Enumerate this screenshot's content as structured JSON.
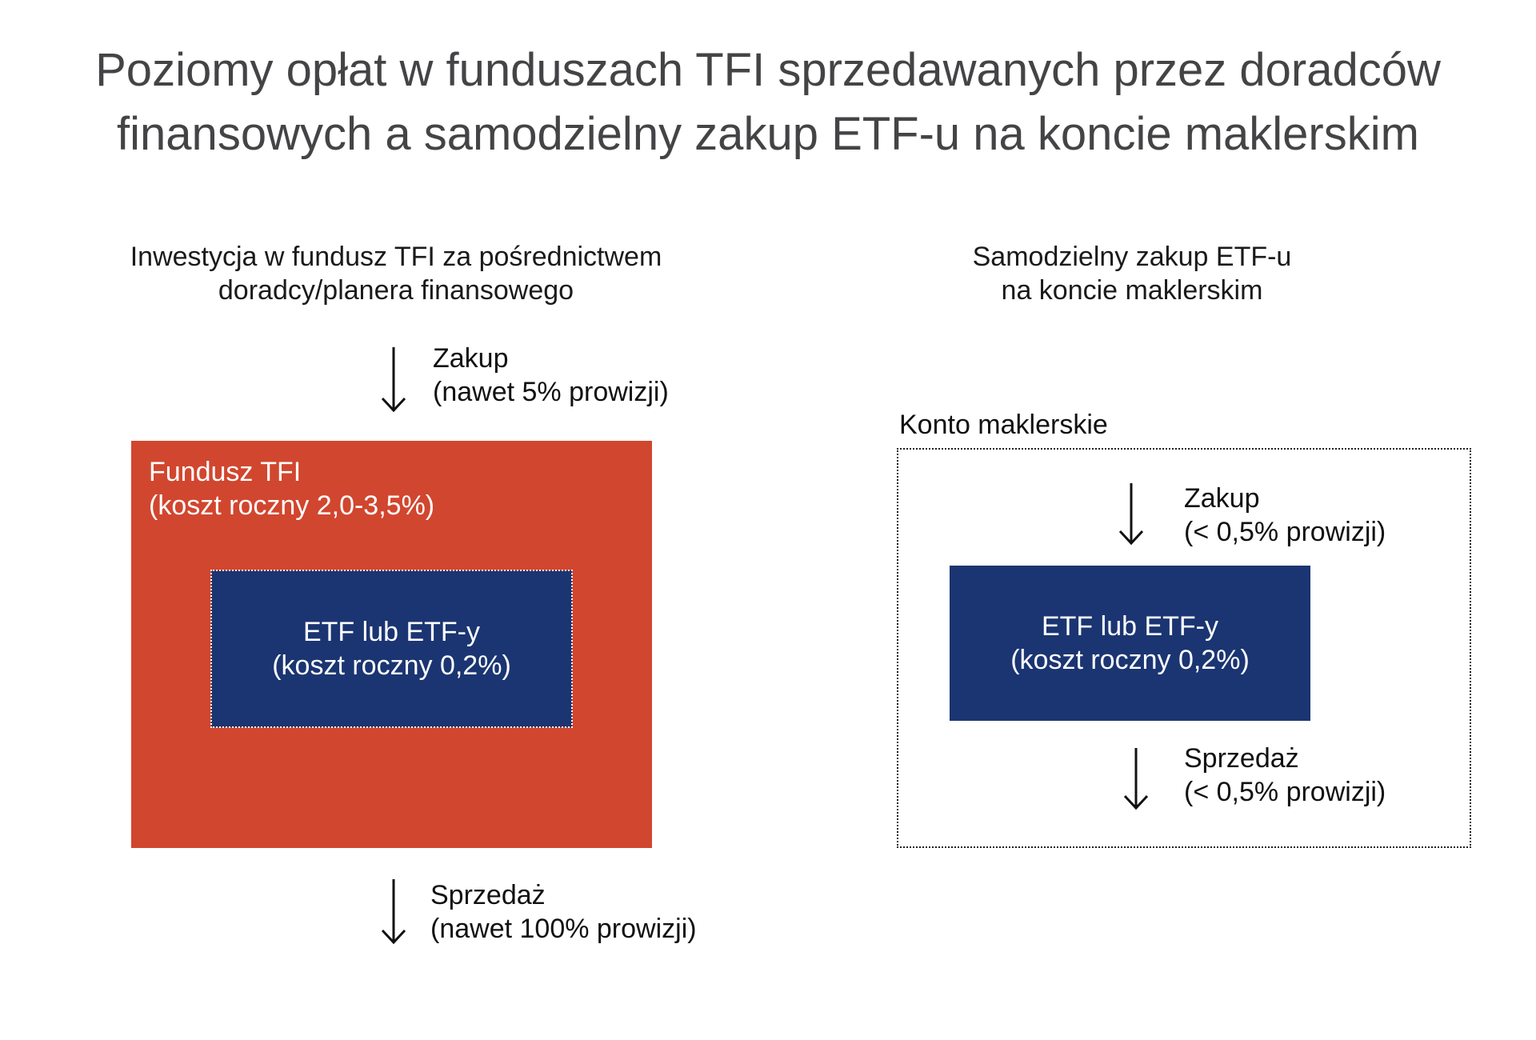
{
  "title": {
    "line1": "Poziomy opłat w funduszach TFI sprzedawanych przez doradców",
    "line2": "finansowych a samodzielny zakup ETF-u na koncie maklerskim"
  },
  "left": {
    "heading_line1": "Inwestycja w fundusz TFI za pośrednictwem",
    "heading_line2": "doradcy/planera finansowego",
    "buy": {
      "line1": "Zakup",
      "line2": "(nawet 5% prowizji)"
    },
    "fund_box": {
      "line1": "Fundusz TFI",
      "line2": "(koszt roczny 2,0-3,5%)"
    },
    "etf_box": {
      "line1": "ETF lub ETF-y",
      "line2": "(koszt roczny 0,2%)"
    },
    "sell": {
      "line1": "Sprzedaż",
      "line2": "(nawet 100% prowizji)"
    }
  },
  "right": {
    "heading_line1": "Samodzielny zakup ETF-u",
    "heading_line2": "na koncie maklerskim",
    "account_label": "Konto maklerskie",
    "buy": {
      "line1": "Zakup",
      "line2": "(< 0,5% prowizji)"
    },
    "etf_box": {
      "line1": "ETF lub ETF-y",
      "line2": "(koszt roczny 0,2%)"
    },
    "sell": {
      "line1": "Sprzedaż",
      "line2": "(< 0,5% prowizji)"
    }
  },
  "colors": {
    "fund_box": "#d1462e",
    "etf_box": "#1b3572",
    "title_text": "#444447"
  },
  "icons": {
    "arrow": "arrow-down-icon"
  }
}
